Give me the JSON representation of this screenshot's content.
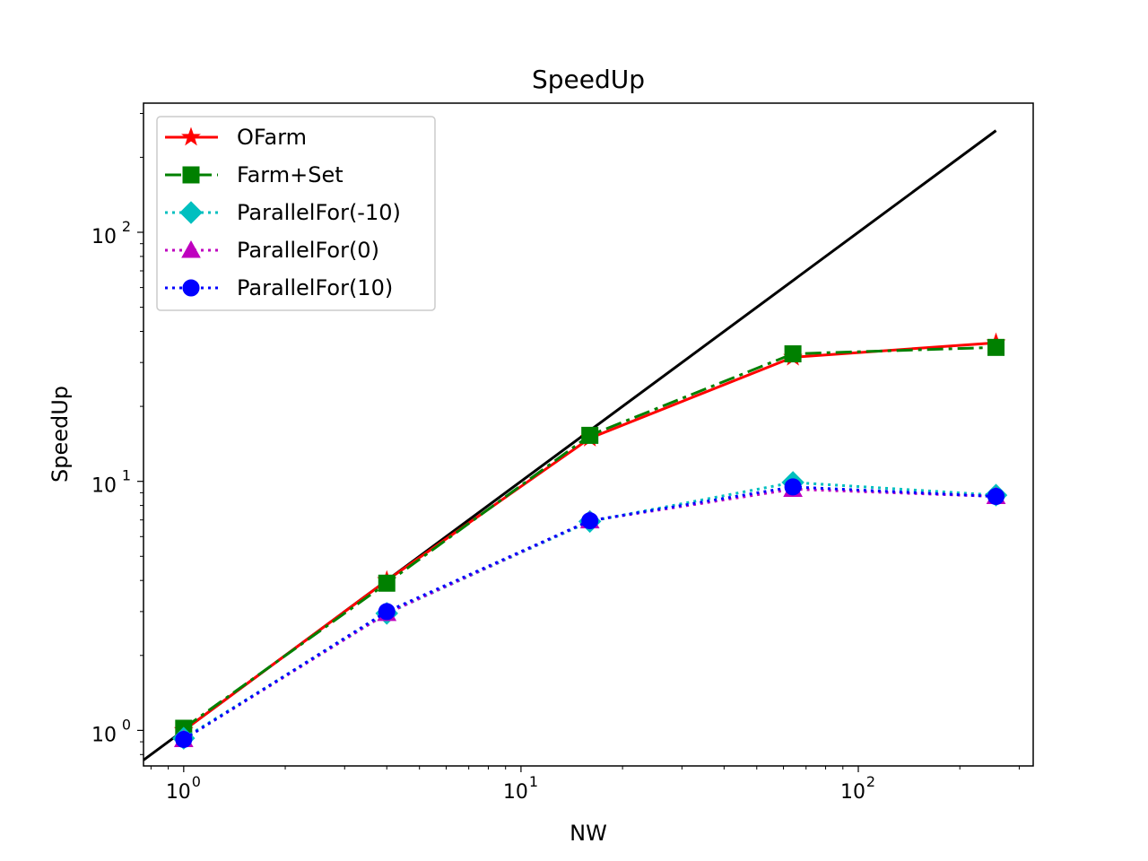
{
  "chart_data": {
    "type": "line",
    "title": "SpeedUp",
    "xlabel": "NW",
    "ylabel": "SpeedUp",
    "xscale": "log",
    "yscale": "log",
    "xlim": [
      0.76,
      330
    ],
    "ylim": [
      0.72,
      330
    ],
    "grid": false,
    "legend_position": "top-left",
    "x_ticks": [
      {
        "value": 1,
        "base": "10",
        "exp": "0"
      },
      {
        "value": 10,
        "base": "10",
        "exp": "1"
      },
      {
        "value": 100,
        "base": "10",
        "exp": "2"
      }
    ],
    "y_ticks": [
      {
        "value": 1,
        "base": "10",
        "exp": "0"
      },
      {
        "value": 10,
        "base": "10",
        "exp": "1"
      },
      {
        "value": 100,
        "base": "10",
        "exp": "2"
      }
    ],
    "reference_line": {
      "description": "ideal",
      "color": "#000000",
      "x": [
        0.76,
        256
      ],
      "y": [
        0.76,
        256
      ]
    },
    "x": [
      1,
      4,
      16,
      64,
      256
    ],
    "series": [
      {
        "name": "OFarm",
        "values": [
          1.0,
          4.0,
          14.9,
          31.5,
          36.0
        ],
        "color": "#ff0000",
        "marker": "star",
        "dash": ""
      },
      {
        "name": "Farm+Set",
        "values": [
          1.02,
          3.9,
          15.3,
          32.5,
          34.5
        ],
        "color": "#008000",
        "marker": "square",
        "dash": "18 6 4 6"
      },
      {
        "name": "ParallelFor(-10)",
        "values": [
          0.93,
          2.95,
          6.9,
          9.9,
          8.8
        ],
        "color": "#00bfbf",
        "marker": "diamond",
        "dash": "3 5"
      },
      {
        "name": "ParallelFor(0)",
        "values": [
          0.92,
          2.95,
          6.95,
          9.3,
          8.7
        ],
        "color": "#bf00bf",
        "marker": "triangle",
        "dash": "3 5"
      },
      {
        "name": "ParallelFor(10)",
        "values": [
          0.92,
          3.0,
          6.95,
          9.5,
          8.7
        ],
        "color": "#0000ff",
        "marker": "circle",
        "dash": "3 5"
      }
    ]
  }
}
